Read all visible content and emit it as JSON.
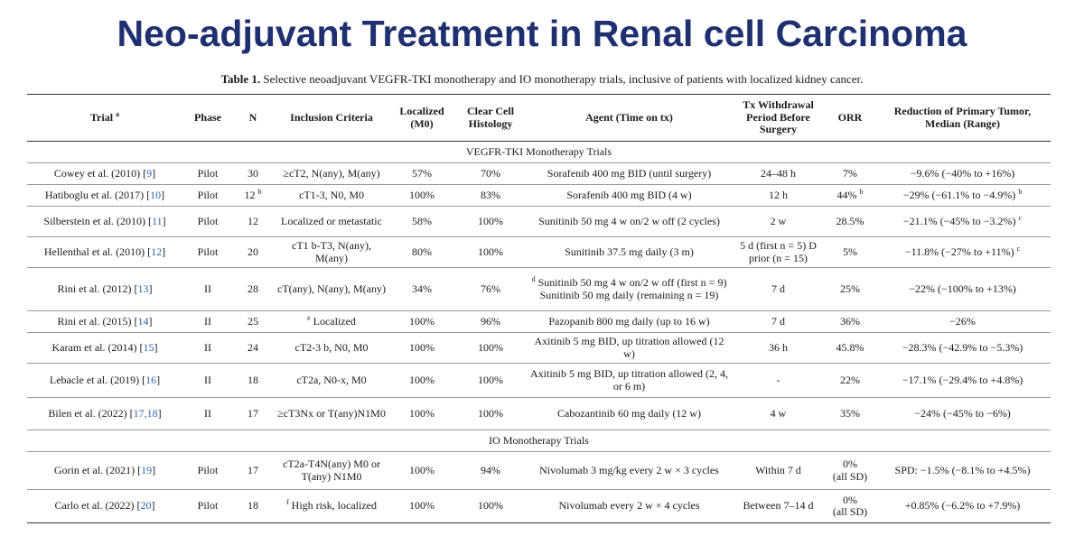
{
  "title": "Neo-adjuvant Treatment in Renal cell Carcinoma",
  "caption": {
    "label": "Table 1.",
    "text": "Selective neoadjuvant VEGFR-TKI monotherapy and IO monotherapy trials, inclusive of patients with localized kidney cancer."
  },
  "headers": {
    "trial": "Trial",
    "trial_sup": "a",
    "phase": "Phase",
    "n": "N",
    "inclusion": "Inclusion Criteria",
    "localized": "Localized (M0)",
    "clear_cell": "Clear Cell Histology",
    "agent": "Agent (Time on tx)",
    "withdrawal": "Tx Withdrawal Period Before Surgery",
    "orr": "ORR",
    "reduction": "Reduction of Primary Tumor, Median (Range)"
  },
  "sections": {
    "vegfr": "VEGFR-TKI Monotherapy Trials",
    "io": "IO Monotherapy Trials"
  },
  "rows": [
    {
      "trial": "Cowey et al. (2010) [",
      "ref": "9",
      "phase": "Pilot",
      "n": "30",
      "n_sup": "",
      "inc_sup": "",
      "inclusion": "≥cT2, N(any), M(any)",
      "localized": "57%",
      "clear": "70%",
      "agent_sup": "",
      "agent": "Sorafenib 400 mg BID (until surgery)",
      "withdrawal": "24–48 h",
      "orr": "7%",
      "orr_sup": "",
      "orr2": "",
      "reduction": "−9.6% (−40% to +16%)",
      "red_sup": ""
    },
    {
      "trial": "Hatiboglu et al. (2017) [",
      "ref": "10",
      "phase": "Pilot",
      "n": "12",
      "n_sup": "b",
      "inc_sup": "",
      "inclusion": "cT1-3, N0, M0",
      "localized": "100%",
      "clear": "83%",
      "agent_sup": "",
      "agent": "Sorafenib 400 mg BID (4 w)",
      "withdrawal": "12 h",
      "orr": "44%",
      "orr_sup": "b",
      "orr2": "",
      "reduction": "−29% (−61.1% to −4.9%)",
      "red_sup": "b"
    },
    {
      "trial": "Silberstein et al. (2010) [",
      "ref": "11",
      "phase": "Pilot",
      "n": "12",
      "n_sup": "",
      "inc_sup": "",
      "inclusion": "Localized or metastatic",
      "localized": "58%",
      "clear": "100%",
      "agent_sup": "",
      "agent": "Sunitinib 50 mg 4 w on/2 w off (2 cycles)",
      "withdrawal": "2 w",
      "orr": "28.5%",
      "orr_sup": "",
      "orr2": "",
      "reduction": "−21.1% (−45% to −3.2%)",
      "red_sup": "c"
    },
    {
      "trial": "Hellenthal et al. (2010) [",
      "ref": "12",
      "phase": "Pilot",
      "n": "20",
      "n_sup": "",
      "inc_sup": "",
      "inclusion": "cT1 b-T3, N(any), M(any)",
      "localized": "80%",
      "clear": "100%",
      "agent_sup": "",
      "agent": "Sunitinib 37.5 mg daily (3 m)",
      "withdrawal": "5 d (first n = 5) D prior (n = 15)",
      "orr": "5%",
      "orr_sup": "",
      "orr2": "",
      "reduction": "−11.8% (−27% to +11%)",
      "red_sup": "c"
    },
    {
      "trial": "Rini et al. (2012) [",
      "ref": "13",
      "phase": "II",
      "n": "28",
      "n_sup": "",
      "inc_sup": "",
      "inclusion": "cT(any), N(any), M(any)",
      "localized": "34%",
      "clear": "76%",
      "agent_sup": "d",
      "agent": "Sunitinib 50 mg 4 w on/2 w off (first n = 9) Sunitinib 50 mg daily (remaining n = 19)",
      "withdrawal": "7 d",
      "orr": "25%",
      "orr_sup": "",
      "orr2": "",
      "reduction": "−22% (−100% to +13%)",
      "red_sup": ""
    },
    {
      "trial": "Rini et al. (2015) [",
      "ref": "14",
      "phase": "II",
      "n": "25",
      "n_sup": "",
      "inc_sup": "e",
      "inclusion": "Localized",
      "localized": "100%",
      "clear": "96%",
      "agent_sup": "",
      "agent": "Pazopanib 800 mg daily (up to 16 w)",
      "withdrawal": "7 d",
      "orr": "36%",
      "orr_sup": "",
      "orr2": "",
      "reduction": "−26%",
      "red_sup": ""
    },
    {
      "trial": "Karam et al. (2014) [",
      "ref": "15",
      "phase": "II",
      "n": "24",
      "n_sup": "",
      "inc_sup": "",
      "inclusion": "cT2-3 b, N0, M0",
      "localized": "100%",
      "clear": "100%",
      "agent_sup": "",
      "agent": "Axitinib 5 mg BID, up titration allowed (12 w)",
      "withdrawal": "36 h",
      "orr": "45.8%",
      "orr_sup": "",
      "orr2": "",
      "reduction": "−28.3% (−42.9% to −5.3%)",
      "red_sup": ""
    },
    {
      "trial": "Lebacle et al. (2019) [",
      "ref": "16",
      "phase": "II",
      "n": "18",
      "n_sup": "",
      "inc_sup": "",
      "inclusion": "cT2a, N0-x, M0",
      "localized": "100%",
      "clear": "100%",
      "agent_sup": "",
      "agent": "Axitinib 5 mg BID, up titration allowed (2, 4, or 6 m)",
      "withdrawal": "-",
      "orr": "22%",
      "orr_sup": "",
      "orr2": "",
      "reduction": "−17.1% (−29.4% to +4.8%)",
      "red_sup": ""
    },
    {
      "trial": "Bilen et al. (2022) [",
      "ref": "17,18",
      "phase": "II",
      "n": "17",
      "n_sup": "",
      "inc_sup": "",
      "inclusion": "≥cT3Nx or T(any)N1M0",
      "localized": "100%",
      "clear": "100%",
      "agent_sup": "",
      "agent": "Cabozantinib 60 mg daily (12 w)",
      "withdrawal": "4 w",
      "orr": "35%",
      "orr_sup": "",
      "orr2": "",
      "reduction": "−24% (−45% to −6%)",
      "red_sup": ""
    },
    {
      "trial": "Gorin et al. (2021) [",
      "ref": "19",
      "phase": "Pilot",
      "n": "17",
      "n_sup": "",
      "inc_sup": "",
      "inclusion": "cT2a-T4N(any) M0 or T(any) N1M0",
      "localized": "100%",
      "clear": "94%",
      "agent_sup": "",
      "agent": "Nivolumab 3 mg/kg every 2 w × 3 cycles",
      "withdrawal": "Within 7 d",
      "orr": "0%",
      "orr_sup": "",
      "orr2": "(all SD)",
      "reduction": "SPD: −1.5% (−8.1% to +4.5%)",
      "red_sup": ""
    },
    {
      "trial": "Carlo et al. (2022) [",
      "ref": "20",
      "phase": "Pilot",
      "n": "18",
      "n_sup": "",
      "inc_sup": "f",
      "inclusion": "High risk, localized",
      "localized": "100%",
      "clear": "100%",
      "agent_sup": "",
      "agent": "Nivolumab every 2 w × 4 cycles",
      "withdrawal": "Between 7–14 d",
      "orr": "0%",
      "orr_sup": "",
      "orr2": "(all SD)",
      "reduction": "+0.85% (−6.2% to +7.9%)",
      "red_sup": ""
    }
  ]
}
